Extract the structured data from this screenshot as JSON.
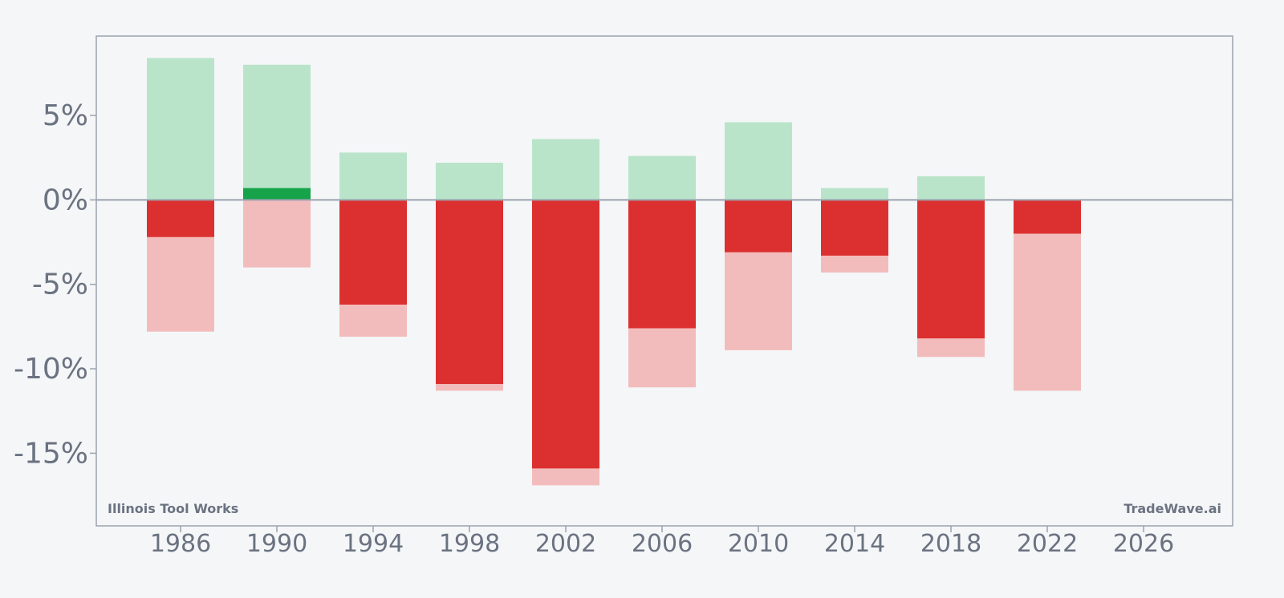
{
  "chart_data": {
    "type": "bar",
    "title": "",
    "xlabel": "",
    "ylabel": "",
    "x_ticks": [
      1986,
      1990,
      1994,
      1998,
      2002,
      2006,
      2010,
      2014,
      2018,
      2022,
      2026
    ],
    "xlim": [
      1982.5,
      2029.7
    ],
    "y_ticks": [
      5,
      0,
      -5,
      -10,
      -15
    ],
    "y_tick_labels": [
      "5%",
      "0%",
      "-5%",
      "-10%",
      "-15%"
    ],
    "ylim": [
      -19.3,
      9.7
    ],
    "grid": false,
    "colors": {
      "gain_light": "#b9e4c9",
      "gain_dark": "#16a34a",
      "loss_light": "#f3bcbc",
      "loss_dark": "#dc3030",
      "baseline": "#9ca3af",
      "frame": "#9ca3af",
      "text": "#6b7280"
    },
    "series": [
      {
        "name": "",
        "style": "range",
        "x": [
          1986,
          1990,
          1994,
          1998,
          2002,
          2006,
          2010,
          2014,
          2018,
          2022
        ],
        "high": [
          8.4,
          8.0,
          2.8,
          2.2,
          3.6,
          2.6,
          4.6,
          0.7,
          1.4,
          0.0
        ],
        "low": [
          -7.8,
          -4.0,
          -8.1,
          -11.3,
          -16.9,
          -11.1,
          -8.9,
          -4.3,
          -9.3,
          -11.3
        ]
      },
      {
        "name": "",
        "style": "value",
        "x": [
          1986,
          1990,
          1994,
          1998,
          2002,
          2006,
          2010,
          2014,
          2018,
          2022
        ],
        "values": [
          -2.2,
          0.7,
          -6.2,
          -10.9,
          -15.9,
          -7.6,
          -3.1,
          -3.3,
          -8.2,
          -2.0
        ]
      }
    ]
  },
  "labels": {
    "company": "Illinois Tool Works",
    "brand": "TradeWave.ai"
  }
}
